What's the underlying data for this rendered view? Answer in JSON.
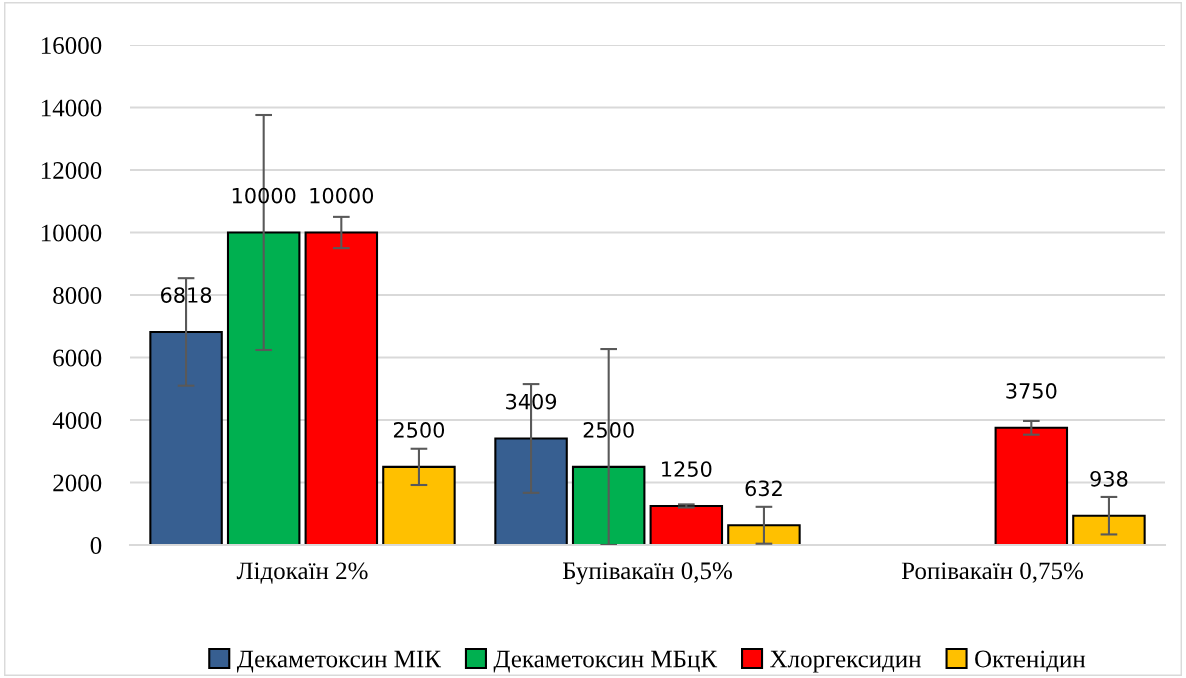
{
  "chart_data": {
    "type": "bar",
    "categories": [
      "Лідокаїн 2%",
      "Бупівакаїн 0,5%",
      "Ропівакаїн 0,75%"
    ],
    "series": [
      {
        "name": "Декаметоксин МІК",
        "color": "#375f91",
        "values": [
          6818,
          3409,
          null
        ],
        "errors": [
          1720,
          1740,
          null
        ]
      },
      {
        "name": "Декаметоксин МБцК",
        "color": "#00b050",
        "values": [
          10000,
          2500,
          null
        ],
        "errors": [
          3760,
          [
            0,
            6270
          ],
          null
        ]
      },
      {
        "name": "Хлоргексидин",
        "color": "#ff0000",
        "values": [
          10000,
          1250,
          3750
        ],
        "errors": [
          500,
          50,
          220
        ]
      },
      {
        "name": "Октенідин",
        "color": "#ffc000",
        "values": [
          2500,
          632,
          938
        ],
        "errors": [
          580,
          590,
          600
        ]
      }
    ],
    "ylim": [
      0,
      16000
    ],
    "yticks": [
      0,
      2000,
      4000,
      6000,
      8000,
      10000,
      12000,
      14000,
      16000
    ],
    "grid": "y",
    "legend": "bottom",
    "data_labels": true
  }
}
